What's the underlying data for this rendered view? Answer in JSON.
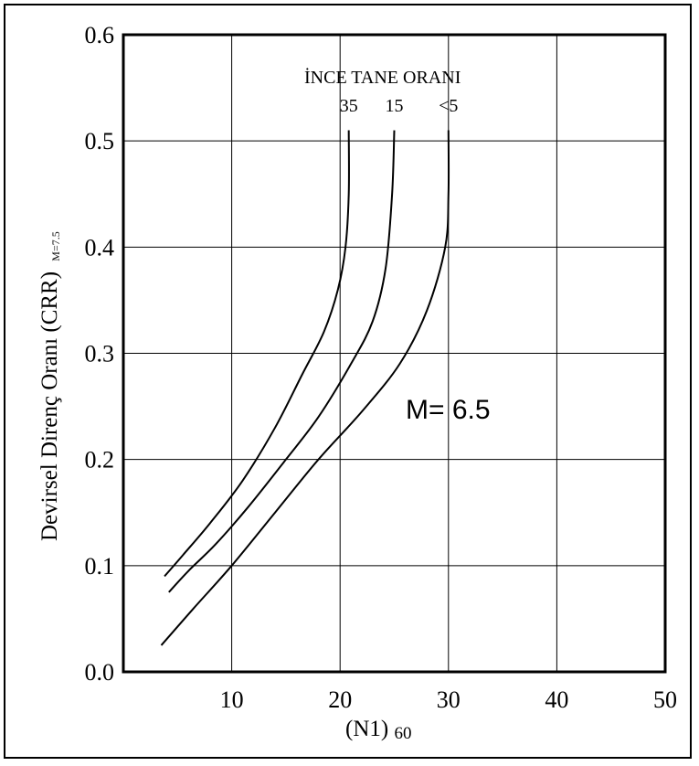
{
  "chart_data": {
    "type": "line",
    "xlabel": "(N1)",
    "xlabel_sub": "60",
    "ylabel": "Devirsel Direnç Oranı (CRR)",
    "ylabel_sub": "M=7.5",
    "xlim": [
      0,
      50
    ],
    "ylim": [
      0.0,
      0.6
    ],
    "xticks": [
      10,
      20,
      30,
      40,
      50
    ],
    "yticks": [
      "0.0",
      "0.1",
      "0.2",
      "0.3",
      "0.4",
      "0.5",
      "0.6"
    ],
    "grid": true,
    "annotation_title": "İNCE TANE ORANI",
    "annotation_magnitude": "M= 6.5",
    "series": [
      {
        "name": "35",
        "x": [
          3.8,
          5.5,
          8.0,
          11.0,
          14.0,
          16.5,
          18.5,
          19.8,
          20.5,
          20.8,
          20.8
        ],
        "y": [
          0.09,
          0.11,
          0.14,
          0.18,
          0.23,
          0.28,
          0.32,
          0.36,
          0.4,
          0.45,
          0.51
        ]
      },
      {
        "name": "15",
        "x": [
          4.2,
          6.0,
          8.5,
          11.5,
          15.0,
          18.0,
          21.0,
          23.0,
          24.2,
          24.8,
          25.0
        ],
        "y": [
          0.075,
          0.095,
          0.12,
          0.155,
          0.2,
          0.24,
          0.29,
          0.33,
          0.38,
          0.45,
          0.51
        ]
      },
      {
        "name": "<5",
        "x": [
          3.5,
          6.5,
          10.0,
          14.0,
          18.0,
          22.0,
          25.5,
          28.0,
          29.7,
          30.0,
          30.0
        ],
        "y": [
          0.025,
          0.06,
          0.1,
          0.15,
          0.2,
          0.245,
          0.29,
          0.34,
          0.4,
          0.45,
          0.51
        ]
      }
    ]
  }
}
